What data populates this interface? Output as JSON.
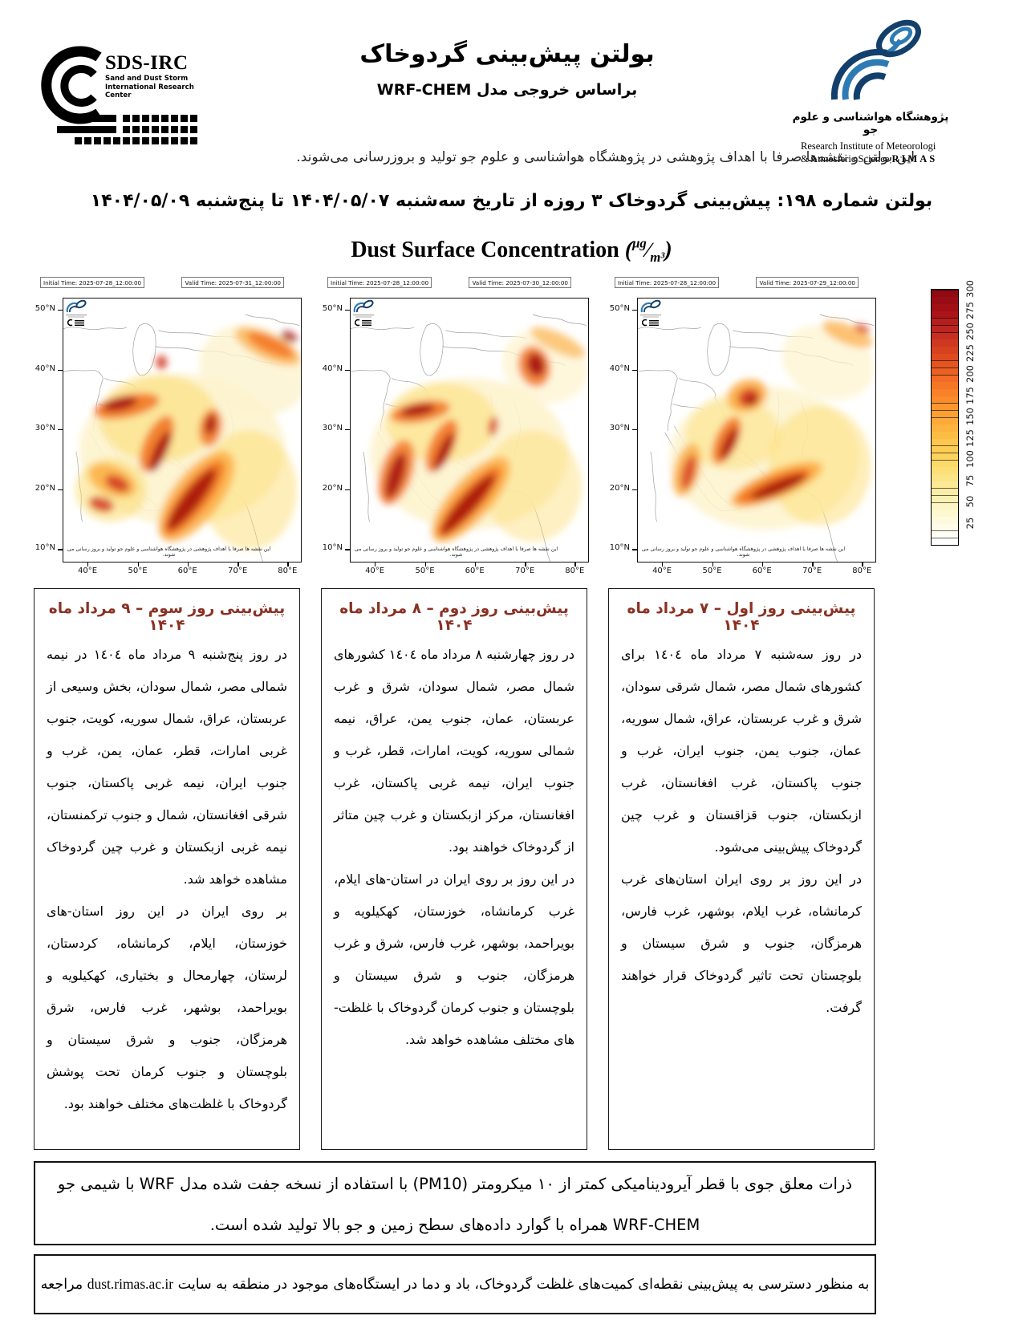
{
  "header": {
    "sds_logo": {
      "acronym": "SDS-IRC",
      "line1": "Sand and Dust Storm",
      "line2": "International Research Center"
    },
    "title": "بولتن پیش‌بینی گردوخاک",
    "subtitle": "براساس خروجی مدل WRF-CHEM",
    "rimas_logo": {
      "fa": "پژوهشگاه هواشناسی و علوم جو",
      "en_line1": "Research Institute of Meteorologi",
      "en_line2": "& Atmosferic Science",
      "acronym": "RIMAS"
    },
    "disclaimer": "این بولتن و نقشه‌ها صرفا با اهداف پژوهشی در پژوهشگاه هواشناسی و علوم جو تولید و بروزرسانی می‌شوند."
  },
  "bulletin_title": "بولتن شماره ۱۹۸: پیش‌بینی گردوخاک ۳ روزه از تاریخ سه‌شنبه ۱۴۰۴/۰۵/۰۷ تا پنج‌شنبه ۱۴۰۴/۰۵/۰۹",
  "figure_title": {
    "text": "Dust Surface Concentration",
    "unit_numerator": "μg",
    "unit_denominator": "m³"
  },
  "map_axes": {
    "lat_ticks": [
      "50°N",
      "40°N",
      "30°N",
      "20°N",
      "10°N"
    ],
    "lat_fracs": [
      0.045,
      0.273,
      0.5,
      0.727,
      0.955
    ],
    "lon_ticks": [
      "40°E",
      "50°E",
      "60°E",
      "70°E",
      "80°E"
    ],
    "lon_fracs": [
      0.105,
      0.316,
      0.526,
      0.737,
      0.947
    ],
    "watermark": "این نقشه ها صرفا با اهداف پژوهشی در پژوهشگاه هواشناسی و علوم جو تولید و بروز رسانی می شوند."
  },
  "maps": [
    {
      "initial_time": "Initial Time: 2025-07-28_12:00:00",
      "valid_time": "Valid Time: 2025-07-31_12:00:00",
      "plumes": [
        [
          150,
          190,
          130,
          95,
          0,
          "y1",
          0.9
        ],
        [
          240,
          90,
          70,
          55,
          20,
          "y1",
          0.8
        ],
        [
          120,
          150,
          75,
          55,
          0,
          "y2",
          0.5
        ],
        [
          235,
          240,
          60,
          75,
          0,
          "y2",
          0.45
        ],
        [
          60,
          240,
          45,
          40,
          0,
          "y2",
          0.5
        ],
        [
          80,
          135,
          42,
          14,
          -12,
          "o2",
          0.85
        ],
        [
          118,
          182,
          16,
          38,
          25,
          "o2",
          0.85
        ],
        [
          168,
          248,
          30,
          68,
          38,
          "o1",
          0.8
        ],
        [
          165,
          250,
          18,
          58,
          38,
          "o2",
          0.85
        ],
        [
          62,
          228,
          32,
          18,
          25,
          "o1",
          0.8
        ],
        [
          258,
          60,
          45,
          16,
          25,
          "o1",
          0.7
        ],
        [
          262,
          58,
          32,
          10,
          25,
          "o2",
          0.8
        ],
        [
          186,
          162,
          14,
          24,
          10,
          "o2",
          0.8
        ],
        [
          72,
          132,
          22,
          8,
          -12,
          "r2",
          0.9
        ],
        [
          122,
          192,
          8,
          28,
          25,
          "r2",
          0.9
        ],
        [
          162,
          252,
          11,
          48,
          38,
          "r2",
          0.9
        ],
        [
          68,
          232,
          16,
          9,
          25,
          "r1",
          0.9
        ],
        [
          48,
          258,
          16,
          9,
          15,
          "r1",
          0.85
        ],
        [
          124,
          80,
          7,
          9,
          0,
          "r1",
          0.85
        ],
        [
          285,
          48,
          11,
          6,
          25,
          "r2",
          0.85
        ],
        [
          186,
          158,
          7,
          13,
          10,
          "r2",
          0.85
        ]
      ]
    },
    {
      "initial_time": "Initial Time: 2025-07-28_12:00:00",
      "valid_time": "Valid Time: 2025-07-30_12:00:00",
      "plumes": [
        [
          150,
          195,
          125,
          95,
          0,
          "y1",
          0.9
        ],
        [
          245,
          85,
          55,
          45,
          20,
          "y1",
          0.7
        ],
        [
          115,
          155,
          70,
          50,
          0,
          "y2",
          0.45
        ],
        [
          230,
          235,
          62,
          70,
          0,
          "y2",
          0.4
        ],
        [
          88,
          142,
          38,
          13,
          -10,
          "o2",
          0.85
        ],
        [
          115,
          185,
          15,
          36,
          25,
          "o2",
          0.85
        ],
        [
          58,
          218,
          20,
          42,
          18,
          "o2",
          0.8
        ],
        [
          152,
          252,
          26,
          68,
          42,
          "o1",
          0.8
        ],
        [
          150,
          255,
          16,
          58,
          42,
          "o2",
          0.85
        ],
        [
          232,
          85,
          20,
          26,
          -15,
          "o2",
          0.8
        ],
        [
          262,
          55,
          38,
          12,
          25,
          "o1",
          0.6
        ],
        [
          85,
          140,
          22,
          7,
          -10,
          "r2",
          0.9
        ],
        [
          118,
          192,
          7,
          26,
          25,
          "r2",
          0.9
        ],
        [
          57,
          222,
          10,
          30,
          18,
          "r2",
          0.85
        ],
        [
          148,
          258,
          10,
          50,
          42,
          "r2",
          0.9
        ],
        [
          234,
          83,
          11,
          15,
          -15,
          "r2",
          0.9
        ],
        [
          180,
          160,
          6,
          12,
          10,
          "r1",
          0.8
        ]
      ]
    },
    {
      "initial_time": "Initial Time: 2025-07-28_12:00:00",
      "valid_time": "Valid Time: 2025-07-29_12:00:00",
      "plumes": [
        [
          160,
          200,
          120,
          90,
          0,
          "y1",
          0.85
        ],
        [
          240,
          80,
          60,
          45,
          20,
          "y1",
          0.7
        ],
        [
          230,
          210,
          65,
          75,
          0,
          "y2",
          0.45
        ],
        [
          120,
          170,
          60,
          45,
          0,
          "y2",
          0.4
        ],
        [
          138,
          122,
          26,
          20,
          -20,
          "o1",
          0.85
        ],
        [
          112,
          178,
          14,
          32,
          25,
          "o2",
          0.85
        ],
        [
          175,
          233,
          62,
          18,
          -22,
          "o1",
          0.85
        ],
        [
          172,
          235,
          50,
          12,
          -22,
          "o2",
          0.9
        ],
        [
          62,
          215,
          16,
          34,
          15,
          "o1",
          0.8
        ],
        [
          265,
          45,
          34,
          12,
          22,
          "o1",
          0.7
        ],
        [
          140,
          124,
          14,
          11,
          -20,
          "r1",
          0.9
        ],
        [
          144,
          128,
          8,
          6,
          -20,
          "r2",
          0.9
        ],
        [
          115,
          182,
          7,
          22,
          25,
          "r2",
          0.85
        ],
        [
          178,
          236,
          38,
          8,
          -22,
          "r2",
          0.9
        ],
        [
          64,
          218,
          8,
          22,
          15,
          "r1",
          0.8
        ],
        [
          283,
          38,
          10,
          5,
          22,
          "r1",
          0.8
        ]
      ]
    }
  ],
  "colorbar": {
    "max": 300,
    "tick_values": [
      25,
      50,
      75,
      100,
      125,
      150,
      175,
      200,
      225,
      250,
      275,
      300
    ],
    "tick_labels": [
      "25",
      "50",
      "75",
      "100",
      "125",
      "150",
      "175",
      "200",
      "225",
      "250",
      "275",
      "300"
    ],
    "anchors": [
      "#ffffff",
      "#fffde5",
      "#fdf6c8",
      "#fceda4",
      "#fbe381",
      "#fcd55f",
      "#fdc64c",
      "#fdb03b",
      "#fd9a2f",
      "#f8812a",
      "#f06724",
      "#e04e1f",
      "#ce3720",
      "#ba231f",
      "#a51016",
      "#8f0a12"
    ]
  },
  "forecasts": [
    {
      "title": "پیش‌بینی روز سوم – ۹ مرداد ماه ۱۴۰۴",
      "para1": "در روز پنج‌شنبه ۹ مرداد ماه ۱٤۰٤ در نیمه شمالی مصر، شمال سودان، بخش وسیعی از عربستان، عراق، شمال سوریه، کویت، جنوب غربی امارات، قطر، عمان، یمن، غرب و جنوب ایران، نیمه غربی پاکستان، جنوب شرقی افغانستان، شمال و جنوب ترکمنستان، نیمه غربی ازبکستان و غرب چین گردوخاک مشاهده خواهد شد.",
      "para2": "بر روی ایران در این روز استان-های خوزستان، ایلام، کرمانشاه، کردستان، لرستان، چهارمحال و بختیاری، کهکیلویه و بویراحمد، بوشهر، غرب فارس، شرق هرمزگان، جنوب و شرق سیستان و بلوچستان و جنوب کرمان تحت پوشش گردوخاک با غلظت‌های مختلف خواهند بود."
    },
    {
      "title": "پیش‌بینی روز دوم – ۸ مرداد ماه ۱۴۰۴",
      "para1": "در روز چهارشنبه ۸ مرداد ماه ۱٤۰٤ کشورهای شمال مصر، شمال سودان، شرق و غرب عربستان، عمان، جنوب یمن، عراق، نیمه شمالی سوریه، کویت، امارات، قطر، غرب و جنوب ایران، نیمه غربی پاکستان، غرب افغانستان، مرکز ازبکستان و غرب چین متاثر از گردوخاک خواهند بود.",
      "para2": "در این روز بر روی ایران در استان-های ایلام، غرب کرمانشاه، خوزستان، کهکیلویه و بویراحمد، بوشهر، غرب فارس، شرق و غرب هرمزگان، جنوب و شرق سیستان و بلوچستان و جنوب کرمان گردوخاک با غلظت-های مختلف مشاهده خواهد شد."
    },
    {
      "title": "پیش‌بینی روز اول – ۷ مرداد ماه ۱۴۰۴",
      "para1": "در روز سه‌شنبه ۷ مرداد ماه ۱٤۰٤ برای کشورهای شمال مصر، شمال شرقی سودان، شرق و غرب عربستان، عراق، شمال سوریه، عمان، جنوب یمن، جنوب ایران، غرب و جنوب پاکستان، غرب افغانستان، غرب ازبکستان، جنوب قزاقستان و غرب چین گردوخاک پیش‌بینی می‌شود.",
      "para2": "در این روز بر روی ایران استان‌های غرب کرمانشاه، غرب ایلام، بوشهر، غرب فارس، هرمزگان، جنوب و شرق سیستان و بلوچستان تحت تاثیر گردوخاک قرار خواهند گرفت."
    }
  ],
  "footnotes": {
    "model_note_line1": "ذرات معلق جوی با قطر آیرودینامیکی کمتر از ۱۰ میکرومتر (PM10) با استفاده از نسخه جفت شده مدل WRF با شیمی جو",
    "model_note_line2": "WRF-CHEM همراه با گوارد داده‌های سطح زمین و جو بالا تولید شده است.",
    "site_note_prefix": "به منظور دسترسی به پیش‌بینی نقطه‌ای کمیت‌های غلظت گردوخاک، باد و دما در ایستگاه‌های موجود در منطقه به سایت ",
    "site_link": "dust.rimas.ac.ir",
    "site_note_suffix": " مراجعه نمایید."
  },
  "colors": {
    "forecast_title": "#8a3224",
    "rimas_blue_dark": "#123f6b",
    "rimas_blue_light": "#2d7bb5",
    "map_border_gray": "#a0a0a0",
    "plume_palette": {
      "y1": "#fdf3cd",
      "y2": "#fcd964",
      "o1": "#fbaa3e",
      "o2": "#f2711f",
      "r1": "#d43b23",
      "r2": "#a6120f"
    }
  }
}
